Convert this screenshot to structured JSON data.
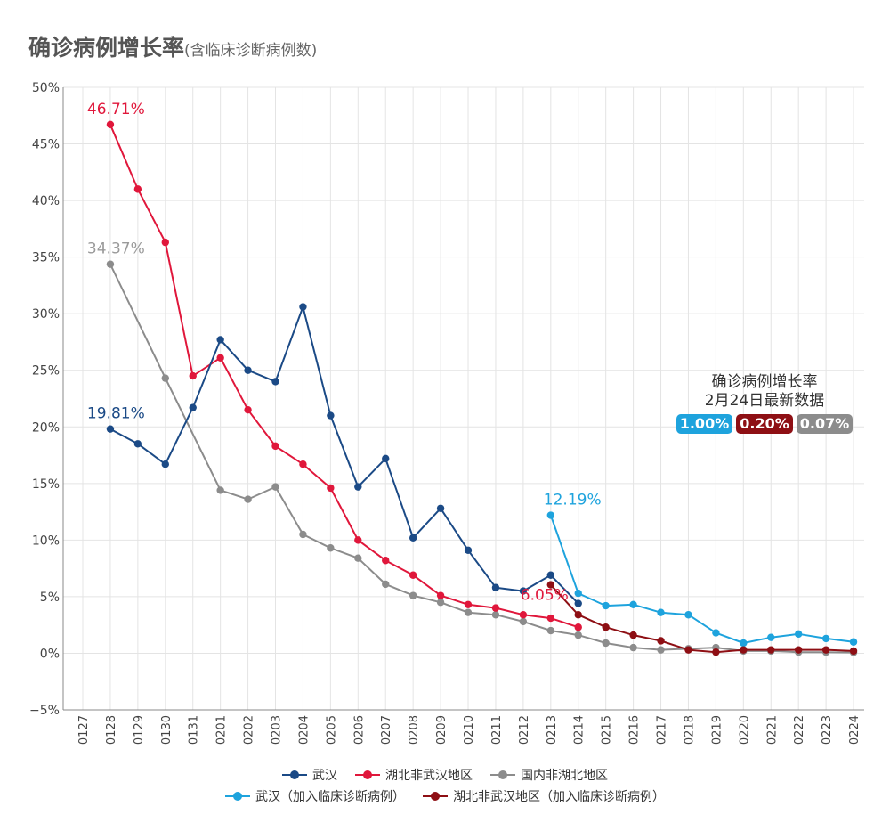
{
  "header": {
    "title": "确诊病例增长率",
    "subtitle": "(含临床诊断病例数)"
  },
  "chart_data": {
    "type": "line",
    "title": "确诊病例增长率",
    "categories": [
      "0127",
      "0128",
      "0129",
      "0130",
      "0131",
      "0201",
      "0202",
      "0203",
      "0204",
      "0205",
      "0206",
      "0207",
      "0208",
      "0209",
      "0210",
      "0211",
      "0212",
      "0213",
      "0214",
      "0215",
      "0216",
      "0217",
      "0218",
      "0219",
      "0220",
      "0221",
      "0222",
      "0223",
      "0224"
    ],
    "ylim": [
      -5,
      50
    ],
    "yticks": [
      -5,
      0,
      5,
      10,
      15,
      20,
      25,
      30,
      35,
      40,
      45,
      50
    ],
    "ytick_labels": [
      "−5%",
      "0%",
      "5%",
      "10%",
      "15%",
      "20%",
      "25%",
      "30%",
      "35%",
      "40%",
      "45%",
      "50%"
    ],
    "grid": true,
    "legend_position": "bottom",
    "series": [
      {
        "name": "武汉",
        "color": "#1b4a86",
        "values": [
          null,
          19.81,
          18.5,
          16.7,
          21.7,
          27.7,
          25.0,
          24.0,
          30.6,
          21.0,
          14.7,
          17.2,
          10.2,
          12.8,
          9.1,
          5.8,
          5.5,
          6.9,
          4.4,
          null,
          null,
          null,
          null,
          null,
          null,
          null,
          null,
          null,
          null
        ]
      },
      {
        "name": "湖北非武汉地区",
        "color": "#e0173b",
        "values": [
          null,
          46.71,
          41.0,
          36.3,
          24.5,
          26.1,
          21.5,
          18.3,
          16.7,
          14.6,
          10.0,
          8.2,
          6.9,
          5.1,
          4.3,
          4.0,
          3.4,
          3.1,
          2.3,
          null,
          null,
          null,
          null,
          null,
          null,
          null,
          null,
          null,
          null
        ]
      },
      {
        "name": "国内非湖北地区",
        "color": "#8c8c8c",
        "values": [
          null,
          34.37,
          null,
          24.3,
          null,
          14.4,
          13.6,
          14.7,
          10.5,
          9.3,
          8.4,
          6.1,
          5.1,
          4.5,
          3.6,
          3.4,
          2.8,
          2.0,
          1.6,
          0.9,
          0.5,
          0.3,
          0.4,
          0.5,
          0.2,
          0.2,
          0.1,
          0.1,
          0.07
        ]
      },
      {
        "name": "武汉（加入临床诊断病例）",
        "color": "#1ea3dd",
        "values": [
          null,
          null,
          null,
          null,
          null,
          null,
          null,
          null,
          null,
          null,
          null,
          null,
          null,
          null,
          null,
          null,
          null,
          12.19,
          5.3,
          4.2,
          4.3,
          3.6,
          3.4,
          1.8,
          0.9,
          1.4,
          1.7,
          1.3,
          1.0
        ]
      },
      {
        "name": "湖北非武汉地区（加入临床诊断病例）",
        "color": "#8e0f14",
        "values": [
          null,
          null,
          null,
          null,
          null,
          null,
          null,
          null,
          null,
          null,
          null,
          null,
          null,
          null,
          null,
          null,
          null,
          6.05,
          3.4,
          2.3,
          1.6,
          1.1,
          0.3,
          0.1,
          0.3,
          0.3,
          0.3,
          0.3,
          0.2
        ]
      }
    ],
    "annotations": [
      {
        "text": "46.71%",
        "series": 1,
        "index": 1,
        "color": "#e0173b"
      },
      {
        "text": "34.37%",
        "series": 2,
        "index": 1,
        "color": "#9a9a9a"
      },
      {
        "text": "19.81%",
        "series": 0,
        "index": 1,
        "color": "#1b4a86"
      },
      {
        "text": "12.19%",
        "series": 3,
        "index": 17,
        "color": "#1ea3dd"
      },
      {
        "text": "6.05%",
        "series": 4,
        "index": 17,
        "color": "#e0173b"
      }
    ]
  },
  "callout": {
    "line1": "确诊病例增长率",
    "line2": "2月24日最新数据",
    "badges": [
      {
        "text": "1.00%",
        "color": "#1ea3dd"
      },
      {
        "text": "0.20%",
        "color": "#8e0f14"
      },
      {
        "text": "0.07%",
        "color": "#8c8c8c"
      }
    ]
  }
}
